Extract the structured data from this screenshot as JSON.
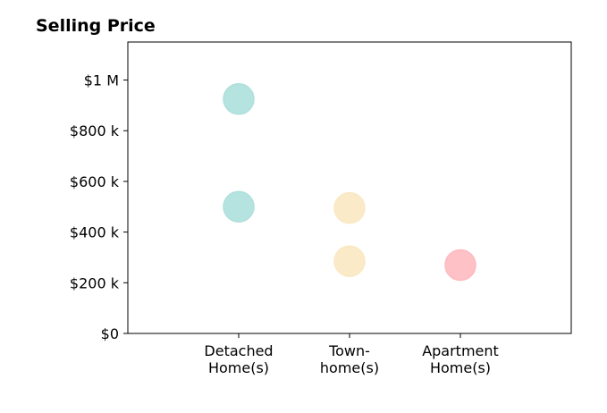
{
  "chart_data": {
    "type": "scatter",
    "title": "Selling Price",
    "xlabel": "",
    "ylabel": "",
    "categories": [
      [
        "Detached",
        "Home(s)"
      ],
      [
        "Town-",
        "home(s)"
      ],
      [
        "Apartment",
        "Home(s)"
      ]
    ],
    "xlim": [
      -1,
      3
    ],
    "ylim": [
      0,
      1150000
    ],
    "yticks": [
      {
        "value": 0,
        "label": "$0"
      },
      {
        "value": 200000,
        "label": "$200 k"
      },
      {
        "value": 400000,
        "label": "$400 k"
      },
      {
        "value": 600000,
        "label": "$600 k"
      },
      {
        "value": 800000,
        "label": "$800 k"
      },
      {
        "value": 1000000,
        "label": "$1 M"
      }
    ],
    "grid": false,
    "points": [
      {
        "category": 0,
        "value": 925000,
        "color": "#b3dfda"
      },
      {
        "category": 0,
        "value": 500000,
        "color": "#b3dfda"
      },
      {
        "category": 1,
        "value": 495000,
        "color": "#f8e8c8"
      },
      {
        "category": 1,
        "value": 285000,
        "color": "#f8e8c8"
      },
      {
        "category": 2,
        "value": 270000,
        "color": "#f6bcc1"
      }
    ]
  }
}
